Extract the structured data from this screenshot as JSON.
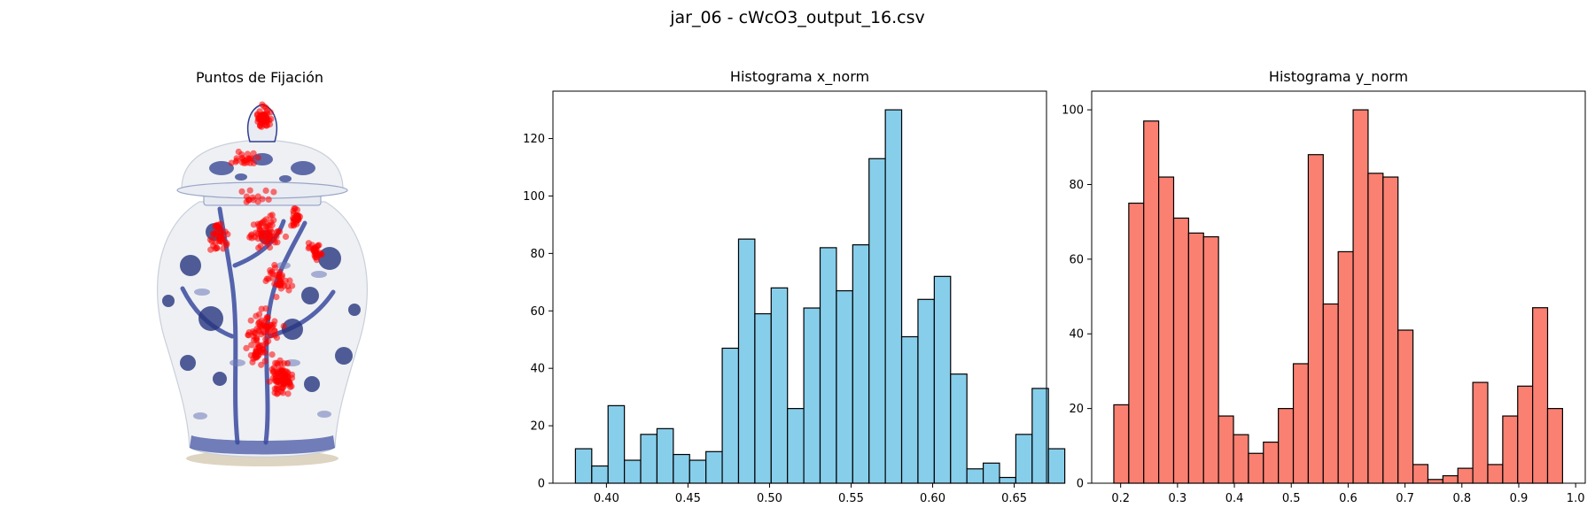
{
  "figure": {
    "suptitle": "jar_06 - cWcO3_output_16.csv"
  },
  "colors": {
    "hist_x": "#87ceeb",
    "hist_y": "#fa8072",
    "edge": "#000000",
    "fixation": "#ff0000",
    "porcelain": "#eef0f3",
    "cobalt": "#2f3f8f"
  },
  "image_panel": {
    "title": "Puntos de Fijación",
    "image_subject": "blue-and-white porcelain ginger jar with lid",
    "fixation_marker": "red-dot"
  },
  "chart_data": [
    {
      "type": "bar",
      "title": "Histograma x_norm",
      "xlabel": "",
      "ylabel": "",
      "bin_start": 0.381,
      "bin_width": 0.01,
      "values": [
        12,
        6,
        27,
        8,
        17,
        19,
        10,
        8,
        11,
        47,
        85,
        59,
        68,
        26,
        61,
        82,
        67,
        83,
        113,
        130,
        51,
        64,
        72,
        38,
        5,
        7,
        2,
        17,
        33,
        12
      ],
      "xlim": [
        0.3672,
        0.6698
      ],
      "ylim": [
        0,
        136.5
      ],
      "xticks": [
        0.4,
        0.45,
        0.5,
        0.55,
        0.6,
        0.65
      ],
      "xtick_labels": [
        "0.40",
        "0.45",
        "0.50",
        "0.55",
        "0.60",
        "0.65"
      ],
      "yticks": [
        0,
        20,
        40,
        60,
        80,
        100,
        120
      ],
      "ytick_labels": [
        "0",
        "20",
        "40",
        "60",
        "80",
        "100",
        "120"
      ],
      "grid": false
    },
    {
      "type": "bar",
      "title": "Histograma y_norm",
      "xlabel": "",
      "ylabel": "",
      "bin_start": 0.188,
      "bin_width": 0.0263,
      "values": [
        21,
        75,
        97,
        82,
        71,
        67,
        66,
        18,
        13,
        8,
        11,
        20,
        32,
        88,
        48,
        62,
        100,
        83,
        82,
        41,
        5,
        1,
        2,
        4,
        27,
        5,
        18,
        26,
        47,
        20
      ],
      "xlim": [
        0.1491,
        1.0169
      ],
      "ylim": [
        0,
        105
      ],
      "xticks": [
        0.2,
        0.3,
        0.4,
        0.5,
        0.6,
        0.7,
        0.8,
        0.9,
        1.0
      ],
      "xtick_labels": [
        "0.2",
        "0.3",
        "0.4",
        "0.5",
        "0.6",
        "0.7",
        "0.8",
        "0.9",
        "1.0"
      ],
      "yticks": [
        0,
        20,
        40,
        60,
        80,
        100
      ],
      "ytick_labels": [
        "0",
        "20",
        "40",
        "60",
        "80",
        "100"
      ],
      "grid": false
    }
  ]
}
